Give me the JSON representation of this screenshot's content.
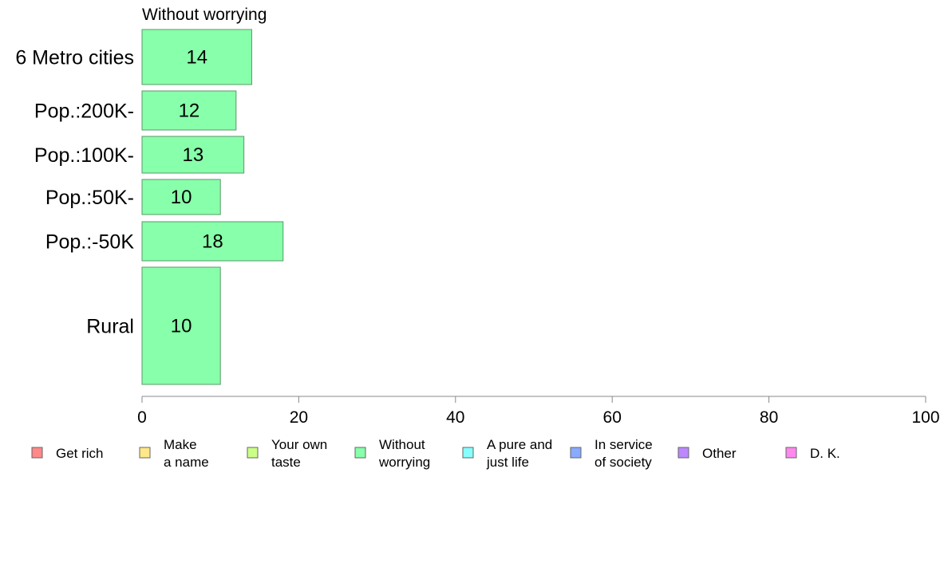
{
  "chart_data": {
    "type": "bar",
    "orientation": "horizontal",
    "title": "Without worrying",
    "categories": [
      "6 Metro cities",
      "Pop.:200K-",
      "Pop.:100K-",
      "Pop.:50K-",
      "Pop.:-50K",
      "Rural"
    ],
    "values": [
      14,
      12,
      13,
      10,
      18,
      10
    ],
    "xlim": [
      0,
      100
    ],
    "x_ticks": [
      0,
      20,
      40,
      60,
      80,
      100
    ],
    "bar_color": "#88ffaa",
    "grid": false,
    "legend_position": "bottom",
    "legend": [
      {
        "line1": "Get rich",
        "line2": "",
        "color": "#ff8888"
      },
      {
        "line1": "Make",
        "line2": "a name",
        "color": "#ffe888"
      },
      {
        "line1": "Your own",
        "line2": "taste",
        "color": "#ccff88"
      },
      {
        "line1": "Without",
        "line2": "worrying",
        "color": "#88ffaa"
      },
      {
        "line1": "A pure and",
        "line2": "just life",
        "color": "#88ffff"
      },
      {
        "line1": "In service",
        "line2": "of society",
        "color": "#88aaff"
      },
      {
        "line1": "Other",
        "line2": "",
        "color": "#bb88ff"
      },
      {
        "line1": "D. K.",
        "line2": "",
        "color": "#ff88ee"
      }
    ]
  }
}
